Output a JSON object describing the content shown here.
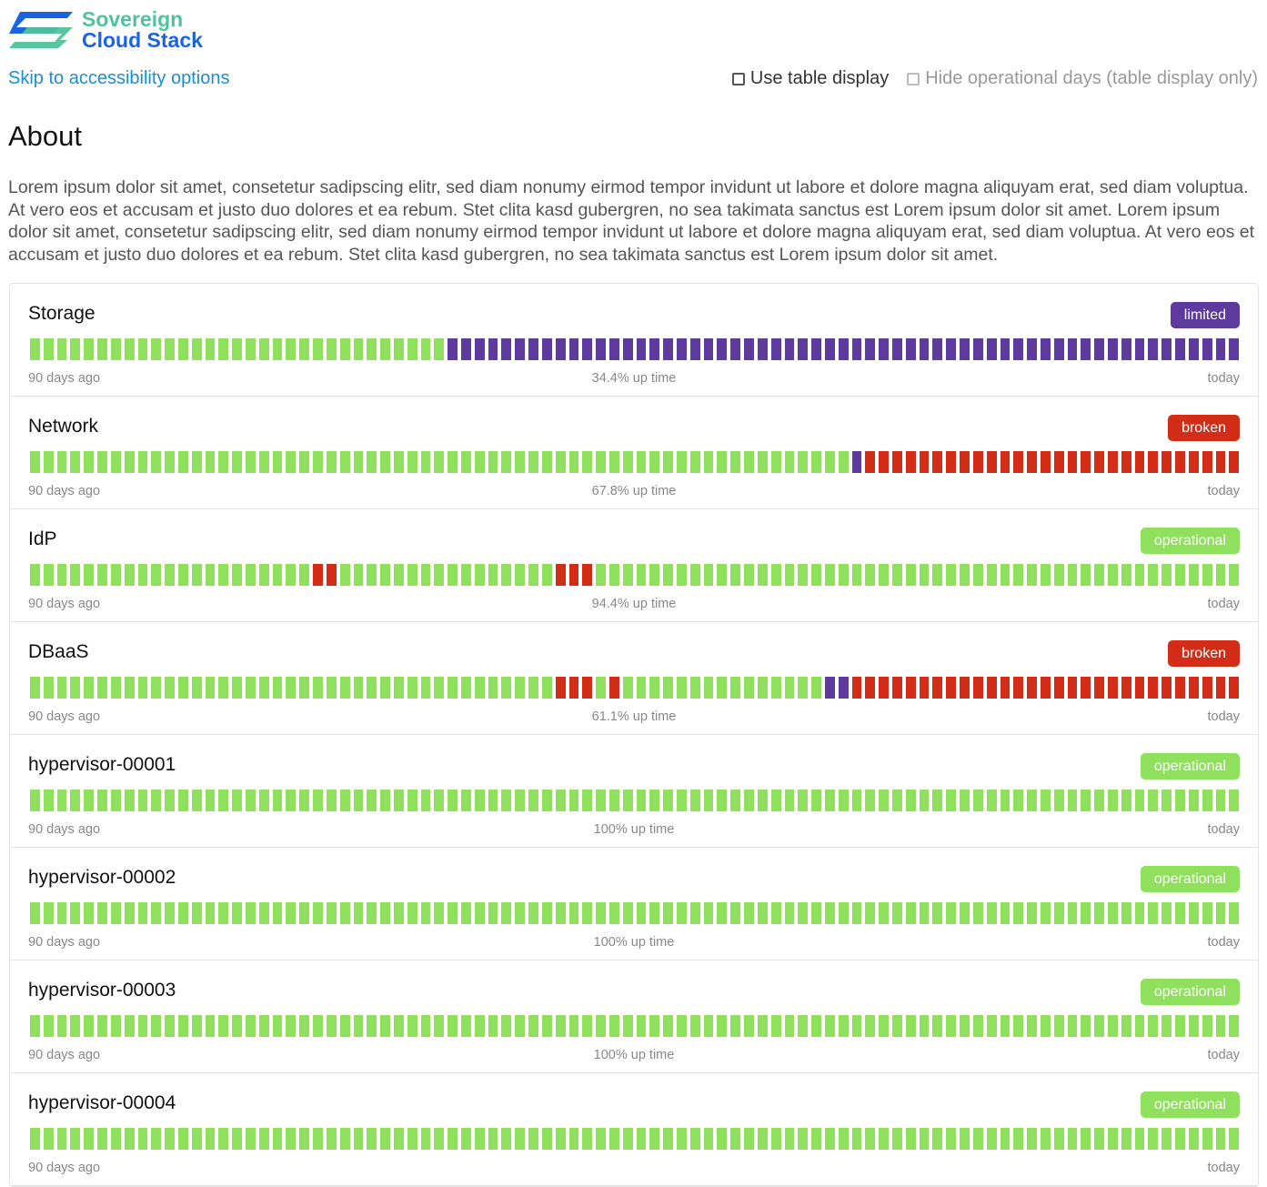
{
  "logo": {
    "line1": "Sovereign",
    "line2": "Cloud Stack"
  },
  "skip_link": "Skip to accessibility options",
  "options": {
    "table_display": "Use table display",
    "hide_operational": "Hide operational days (table display only)"
  },
  "about": {
    "title": "About",
    "text": "Lorem ipsum dolor sit amet, consetetur sadipscing elitr, sed diam nonumy eirmod tempor invidunt ut labore et dolore magna aliquyam erat, sed diam voluptua. At vero eos et accusam et justo duo dolores et ea rebum. Stet clita kasd gubergren, no sea takimata sanctus est Lorem ipsum dolor sit amet. Lorem ipsum dolor sit amet, consetetur sadipscing elitr, sed diam nonumy eirmod tempor invidunt ut labore et dolore magna aliquyam erat, sed diam voluptua. At vero eos et accusam et justo duo dolores et ea rebum. Stet clita kasd gubergren, no sea takimata sanctus est Lorem ipsum dolor sit amet."
  },
  "status_colors": {
    "operational": "#8ee05d",
    "limited": "#5e3a9e",
    "broken": "#d42d17"
  },
  "labels": {
    "start": "90 days ago",
    "end": "today"
  },
  "services": [
    {
      "name": "Storage",
      "status": "limited",
      "uptime": "34.4% up time",
      "runs": [
        [
          "operational",
          31
        ],
        [
          "limited",
          59
        ]
      ]
    },
    {
      "name": "Network",
      "status": "broken",
      "uptime": "67.8% up time",
      "runs": [
        [
          "operational",
          61
        ],
        [
          "limited",
          1
        ],
        [
          "broken",
          28
        ]
      ]
    },
    {
      "name": "IdP",
      "status": "operational",
      "uptime": "94.4% up time",
      "runs": [
        [
          "operational",
          21
        ],
        [
          "broken",
          2
        ],
        [
          "operational",
          16
        ],
        [
          "broken",
          3
        ],
        [
          "operational",
          48
        ]
      ]
    },
    {
      "name": "DBaaS",
      "status": "broken",
      "uptime": "61.1% up time",
      "runs": [
        [
          "operational",
          39
        ],
        [
          "broken",
          3
        ],
        [
          "operational",
          1
        ],
        [
          "broken",
          1
        ],
        [
          "operational",
          15
        ],
        [
          "limited",
          2
        ],
        [
          "broken",
          29
        ]
      ]
    },
    {
      "name": "hypervisor-00001",
      "status": "operational",
      "uptime": "100% up time",
      "runs": [
        [
          "operational",
          90
        ]
      ]
    },
    {
      "name": "hypervisor-00002",
      "status": "operational",
      "uptime": "100% up time",
      "runs": [
        [
          "operational",
          90
        ]
      ]
    },
    {
      "name": "hypervisor-00003",
      "status": "operational",
      "uptime": "100% up time",
      "runs": [
        [
          "operational",
          90
        ]
      ]
    },
    {
      "name": "hypervisor-00004",
      "status": "operational",
      "uptime": "",
      "runs": [
        [
          "operational",
          90
        ]
      ]
    }
  ]
}
